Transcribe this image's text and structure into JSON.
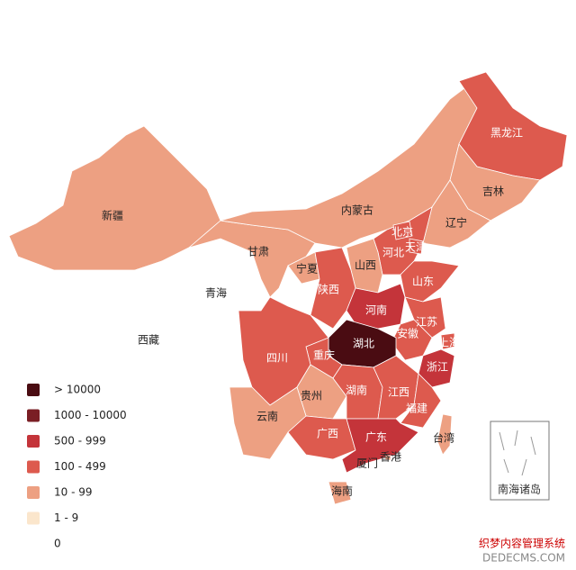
{
  "regions": [
    {
      "name": "新疆",
      "color": "#eda082"
    },
    {
      "name": "西藏",
      "color": "#ffffff"
    },
    {
      "name": "青海",
      "color": "#ffffff"
    },
    {
      "name": "甘肃",
      "color": "#eda082"
    },
    {
      "name": "内蒙古",
      "color": "#eda082"
    },
    {
      "name": "黑龙江",
      "color": "#dd5a4e"
    },
    {
      "name": "吉林",
      "color": "#eda082"
    },
    {
      "name": "辽宁",
      "color": "#eda082"
    },
    {
      "name": "河北",
      "color": "#dd5a4e"
    },
    {
      "name": "北京",
      "color": "#dd5a4e"
    },
    {
      "name": "天津",
      "color": "#dd5a4e"
    },
    {
      "name": "山西",
      "color": "#eda082"
    },
    {
      "name": "宁夏",
      "color": "#eda082"
    },
    {
      "name": "陕西",
      "color": "#dd5a4e"
    },
    {
      "name": "山东",
      "color": "#dd5a4e"
    },
    {
      "name": "河南",
      "color": "#c4343a"
    },
    {
      "name": "江苏",
      "color": "#dd5a4e"
    },
    {
      "name": "安徽",
      "color": "#dd5a4e"
    },
    {
      "name": "上海",
      "color": "#dd5a4e"
    },
    {
      "name": "湖北",
      "color": "#4a0c12"
    },
    {
      "name": "重庆",
      "color": "#dd5a4e"
    },
    {
      "name": "四川",
      "color": "#dd5a4e"
    },
    {
      "name": "浙江",
      "color": "#c4343a"
    },
    {
      "name": "贵州",
      "color": "#eda082"
    },
    {
      "name": "湖南",
      "color": "#dd5a4e"
    },
    {
      "name": "江西",
      "color": "#dd5a4e"
    },
    {
      "name": "福建",
      "color": "#dd5a4e"
    },
    {
      "name": "云南",
      "color": "#eda082"
    },
    {
      "name": "广西",
      "color": "#dd5a4e"
    },
    {
      "name": "广东",
      "color": "#c4343a"
    },
    {
      "name": "台湾",
      "color": "#eda082"
    },
    {
      "name": "香港",
      "color": "#eda082"
    },
    {
      "name": "海南",
      "color": "#eda082"
    }
  ],
  "city_labels": [
    "厦门"
  ],
  "inset_label": "南海诸岛",
  "legend": [
    {
      "label": "> 10000",
      "color": "#4a0c12"
    },
    {
      "label": "1000 - 10000",
      "color": "#7a1e24"
    },
    {
      "label": "500 - 999",
      "color": "#c4343a"
    },
    {
      "label": "100 - 499",
      "color": "#dd5a4e"
    },
    {
      "label": "10 - 99",
      "color": "#eda082"
    },
    {
      "label": "1 - 9",
      "color": "#fbe6cc"
    },
    {
      "label": "0",
      "color": "#ffffff"
    }
  ],
  "watermark": {
    "line1": "织梦内容管理系统",
    "line2": "DEDECMS.COM"
  }
}
